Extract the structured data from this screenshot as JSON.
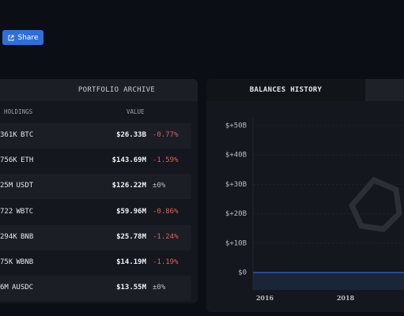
{
  "header": {
    "share_button": "Share"
  },
  "portfolio_archive": {
    "title": "PORTFOLIO ARCHIVE",
    "columns": [
      "HOLDINGS",
      "VALUE"
    ],
    "rows": [
      [
        "361K",
        "BTC",
        "$26.33B",
        "-0.77%"
      ],
      [
        "756K",
        "ETH",
        "$143.69M",
        "-1.59%"
      ],
      [
        "25M",
        "USDT",
        "$126.22M",
        "±0%"
      ],
      [
        "722",
        "WBTC",
        "$59.96M",
        "-0.86%"
      ],
      [
        "294K",
        "BNB",
        "$25.78M",
        "-1.24%"
      ],
      [
        "75K",
        "WBNB",
        "$14.19M",
        "-1.19%"
      ],
      [
        "6M",
        "AUSDC",
        "$13.55M",
        "±0%"
      ]
    ]
  },
  "balances_history": {
    "title": "BALANCES HISTORY",
    "y_axis": [
      "$+50B",
      "$+40B",
      "$+30B",
      "$+20B",
      "$+10B",
      "$0"
    ],
    "x_axis": [
      "2016",
      "2018"
    ]
  }
}
